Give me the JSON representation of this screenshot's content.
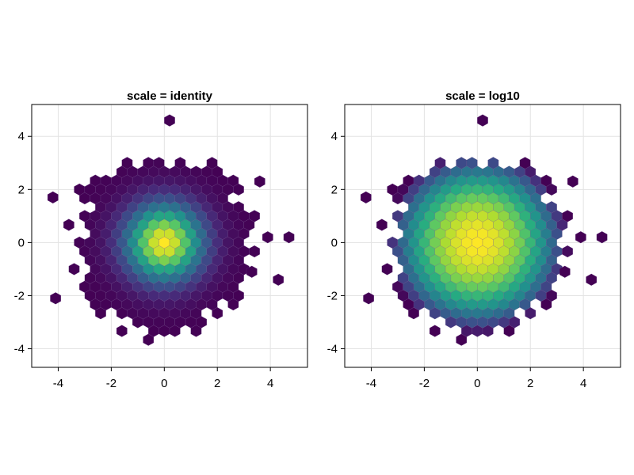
{
  "chart_data": [
    {
      "type": "heatmap",
      "subtype": "hexbin",
      "title": "scale = identity",
      "xlabel": "",
      "ylabel": "",
      "colorscale": "log10-false",
      "colormap": "viridis",
      "xlim": [
        -5.0,
        5.4
      ],
      "ylim": [
        -4.7,
        5.2
      ],
      "xticks": [
        "-4",
        "-2",
        "0",
        "2",
        "4"
      ],
      "yticks": [
        "-4",
        "-2",
        "0",
        "2",
        "4"
      ],
      "grid": true,
      "distribution": "approximately standard bivariate normal (~10,000 samples), peak count at (0, 0)",
      "peak_center": [
        0.0,
        0.0
      ],
      "hex_cell_width": 0.4,
      "hex_row_step": 0.333,
      "extent_radius": 3.4,
      "outliers": [
        [
          -4.2,
          1.7
        ],
        [
          -4.1,
          -2.1
        ],
        [
          0.2,
          4.6
        ],
        [
          4.7,
          0.2
        ],
        [
          4.3,
          -1.4
        ],
        [
          3.9,
          0.2
        ],
        [
          3.6,
          2.3
        ],
        [
          3.3,
          -1.1
        ]
      ]
    },
    {
      "type": "heatmap",
      "subtype": "hexbin",
      "title": "scale = log10",
      "xlabel": "",
      "ylabel": "",
      "colorscale": "log10",
      "colormap": "viridis",
      "xlim": [
        -5.0,
        5.4
      ],
      "ylim": [
        -4.7,
        5.2
      ],
      "xticks": [
        "-4",
        "-2",
        "0",
        "2",
        "4"
      ],
      "yticks": [
        "-4",
        "-2",
        "0",
        "2",
        "4"
      ],
      "grid": true,
      "distribution": "approximately standard bivariate normal (~10,000 samples), peak count at (0, 0)",
      "peak_center": [
        0.0,
        0.0
      ],
      "hex_cell_width": 0.4,
      "hex_row_step": 0.333,
      "extent_radius": 3.4,
      "outliers": [
        [
          -4.2,
          1.7
        ],
        [
          -4.1,
          -2.1
        ],
        [
          0.2,
          4.6
        ],
        [
          4.7,
          0.2
        ],
        [
          4.3,
          -1.4
        ],
        [
          3.9,
          0.2
        ],
        [
          3.6,
          2.3
        ],
        [
          3.3,
          -1.1
        ]
      ]
    }
  ]
}
